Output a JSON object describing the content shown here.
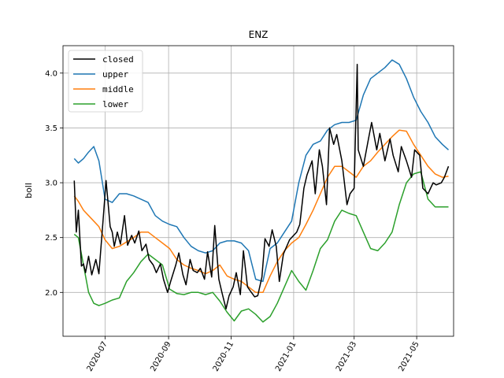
{
  "chart_data": {
    "type": "line",
    "title": "ENZ",
    "xlabel": "",
    "ylabel": "boll",
    "x_tick_labels": [
      "2020-07",
      "2020-09",
      "2020-11",
      "2021-01",
      "2021-03",
      "2021-05"
    ],
    "x_tick_values": [
      "2020-07-01",
      "2020-09-01",
      "2020-11-01",
      "2021-01-01",
      "2021-03-01",
      "2021-05-01"
    ],
    "x_range": [
      "2020-05-21",
      "2021-06-06"
    ],
    "y_ticks": [
      2.0,
      2.5,
      3.0,
      3.5,
      4.0
    ],
    "y_tick_labels": [
      "2.0",
      "2.5",
      "3.0",
      "3.5",
      "4.0"
    ],
    "ylim": [
      1.6,
      4.25
    ],
    "grid": true,
    "legend_position": "top-left",
    "series": [
      {
        "name": "closed",
        "color": "#000000",
        "x": [
          "2020-06-01",
          "2020-06-03",
          "2020-06-05",
          "2020-06-08",
          "2020-06-10",
          "2020-06-12",
          "2020-06-15",
          "2020-06-18",
          "2020-06-22",
          "2020-06-25",
          "2020-06-29",
          "2020-07-02",
          "2020-07-06",
          "2020-07-08",
          "2020-07-10",
          "2020-07-13",
          "2020-07-16",
          "2020-07-20",
          "2020-07-23",
          "2020-07-27",
          "2020-07-30",
          "2020-08-03",
          "2020-08-06",
          "2020-08-10",
          "2020-08-13",
          "2020-08-17",
          "2020-08-20",
          "2020-08-24",
          "2020-08-27",
          "2020-08-31",
          "2020-09-03",
          "2020-09-08",
          "2020-09-11",
          "2020-09-15",
          "2020-09-18",
          "2020-09-22",
          "2020-09-25",
          "2020-09-29",
          "2020-10-02",
          "2020-10-06",
          "2020-10-09",
          "2020-10-13",
          "2020-10-16",
          "2020-10-20",
          "2020-10-23",
          "2020-10-27",
          "2020-10-30",
          "2020-11-03",
          "2020-11-06",
          "2020-11-10",
          "2020-11-13",
          "2020-11-17",
          "2020-11-20",
          "2020-11-24",
          "2020-11-27",
          "2020-12-01",
          "2020-12-04",
          "2020-12-08",
          "2020-12-11",
          "2020-12-15",
          "2020-12-18",
          "2020-12-22",
          "2020-12-28",
          "2021-01-04",
          "2021-01-07",
          "2021-01-11",
          "2021-01-14",
          "2021-01-19",
          "2021-01-22",
          "2021-01-26",
          "2021-01-29",
          "2021-02-02",
          "2021-02-05",
          "2021-02-09",
          "2021-02-12",
          "2021-02-17",
          "2021-02-22",
          "2021-02-25",
          "2021-03-01",
          "2021-03-04",
          "2021-03-05",
          "2021-03-10",
          "2021-03-15",
          "2021-03-18",
          "2021-03-23",
          "2021-03-26",
          "2021-03-31",
          "2021-04-05",
          "2021-04-08",
          "2021-04-13",
          "2021-04-16",
          "2021-04-21",
          "2021-04-26",
          "2021-04-29",
          "2021-05-04",
          "2021-05-07",
          "2021-05-12",
          "2021-05-17",
          "2021-05-20",
          "2021-05-25",
          "2021-05-28",
          "2021-06-01"
        ],
        "values": [
          3.02,
          2.55,
          2.75,
          2.24,
          2.26,
          2.18,
          2.33,
          2.16,
          2.3,
          2.17,
          2.65,
          3.02,
          2.6,
          2.55,
          2.42,
          2.55,
          2.44,
          2.7,
          2.43,
          2.52,
          2.45,
          2.56,
          2.38,
          2.44,
          2.3,
          2.25,
          2.18,
          2.26,
          2.12,
          2.0,
          2.1,
          2.25,
          2.36,
          2.16,
          2.07,
          2.3,
          2.2,
          2.18,
          2.22,
          2.12,
          2.37,
          2.14,
          2.61,
          2.12,
          2.0,
          1.85,
          1.97,
          2.05,
          2.18,
          1.98,
          2.38,
          2.05,
          2.01,
          1.96,
          1.97,
          2.14,
          2.49,
          2.42,
          2.57,
          2.42,
          2.1,
          2.35,
          2.48,
          2.55,
          2.62,
          2.95,
          3.07,
          3.2,
          2.9,
          3.3,
          3.15,
          2.8,
          3.5,
          3.35,
          3.44,
          3.2,
          2.8,
          2.9,
          2.95,
          4.08,
          3.3,
          3.15,
          3.4,
          3.55,
          3.3,
          3.45,
          3.2,
          3.4,
          3.25,
          3.1,
          3.33,
          3.2,
          3.05,
          3.3,
          3.25,
          2.95,
          2.9,
          3.0,
          2.98,
          3.0,
          3.05,
          3.15
        ]
      },
      {
        "name": "upper",
        "color": "#1f77b4",
        "x": [
          "2020-06-01",
          "2020-06-05",
          "2020-06-10",
          "2020-06-15",
          "2020-06-20",
          "2020-06-25",
          "2020-07-01",
          "2020-07-08",
          "2020-07-15",
          "2020-07-22",
          "2020-07-29",
          "2020-08-05",
          "2020-08-12",
          "2020-08-19",
          "2020-08-26",
          "2020-09-02",
          "2020-09-09",
          "2020-09-16",
          "2020-09-23",
          "2020-09-30",
          "2020-10-07",
          "2020-10-14",
          "2020-10-21",
          "2020-10-28",
          "2020-11-04",
          "2020-11-11",
          "2020-11-18",
          "2020-11-25",
          "2020-12-02",
          "2020-12-09",
          "2020-12-16",
          "2020-12-23",
          "2020-12-30",
          "2021-01-06",
          "2021-01-13",
          "2021-01-20",
          "2021-01-27",
          "2021-02-03",
          "2021-02-10",
          "2021-02-17",
          "2021-02-24",
          "2021-03-03",
          "2021-03-10",
          "2021-03-17",
          "2021-03-24",
          "2021-03-31",
          "2021-04-07",
          "2021-04-14",
          "2021-04-21",
          "2021-04-28",
          "2021-05-05",
          "2021-05-12",
          "2021-05-19",
          "2021-05-26",
          "2021-06-01"
        ],
        "values": [
          3.22,
          3.18,
          3.22,
          3.28,
          3.33,
          3.2,
          2.85,
          2.82,
          2.9,
          2.9,
          2.88,
          2.85,
          2.82,
          2.7,
          2.65,
          2.62,
          2.6,
          2.5,
          2.42,
          2.38,
          2.36,
          2.38,
          2.45,
          2.47,
          2.47,
          2.45,
          2.38,
          2.12,
          2.1,
          2.4,
          2.45,
          2.55,
          2.65,
          3.0,
          3.25,
          3.35,
          3.38,
          3.48,
          3.53,
          3.55,
          3.55,
          3.57,
          3.8,
          3.95,
          4.0,
          4.05,
          4.12,
          4.08,
          3.95,
          3.78,
          3.65,
          3.55,
          3.42,
          3.35,
          3.3
        ]
      },
      {
        "name": "middle",
        "color": "#ff7f0e",
        "x": [
          "2020-06-01",
          "2020-06-05",
          "2020-06-10",
          "2020-06-15",
          "2020-06-20",
          "2020-06-25",
          "2020-07-01",
          "2020-07-08",
          "2020-07-15",
          "2020-07-22",
          "2020-07-29",
          "2020-08-05",
          "2020-08-12",
          "2020-08-19",
          "2020-08-26",
          "2020-09-02",
          "2020-09-09",
          "2020-09-16",
          "2020-09-23",
          "2020-09-30",
          "2020-10-07",
          "2020-10-14",
          "2020-10-21",
          "2020-10-28",
          "2020-11-04",
          "2020-11-11",
          "2020-11-18",
          "2020-11-25",
          "2020-12-02",
          "2020-12-09",
          "2020-12-16",
          "2020-12-23",
          "2020-12-30",
          "2021-01-06",
          "2021-01-13",
          "2021-01-20",
          "2021-01-27",
          "2021-02-03",
          "2021-02-10",
          "2021-02-17",
          "2021-02-24",
          "2021-03-03",
          "2021-03-10",
          "2021-03-17",
          "2021-03-24",
          "2021-03-31",
          "2021-04-07",
          "2021-04-14",
          "2021-04-21",
          "2021-04-28",
          "2021-05-05",
          "2021-05-12",
          "2021-05-19",
          "2021-05-26",
          "2021-06-01"
        ],
        "values": [
          2.88,
          2.83,
          2.75,
          2.7,
          2.65,
          2.6,
          2.48,
          2.4,
          2.42,
          2.46,
          2.5,
          2.55,
          2.55,
          2.5,
          2.45,
          2.4,
          2.3,
          2.25,
          2.22,
          2.2,
          2.17,
          2.2,
          2.25,
          2.15,
          2.12,
          2.1,
          2.05,
          2.0,
          2.0,
          2.15,
          2.28,
          2.38,
          2.45,
          2.5,
          2.62,
          2.75,
          2.9,
          3.05,
          3.15,
          3.15,
          3.1,
          3.05,
          3.15,
          3.2,
          3.28,
          3.35,
          3.42,
          3.48,
          3.47,
          3.35,
          3.25,
          3.15,
          3.08,
          3.05,
          3.06
        ]
      },
      {
        "name": "lower",
        "color": "#2ca02c",
        "x": [
          "2020-06-01",
          "2020-06-05",
          "2020-06-10",
          "2020-06-15",
          "2020-06-20",
          "2020-06-25",
          "2020-07-01",
          "2020-07-08",
          "2020-07-15",
          "2020-07-22",
          "2020-07-29",
          "2020-08-05",
          "2020-08-12",
          "2020-08-19",
          "2020-08-26",
          "2020-09-02",
          "2020-09-09",
          "2020-09-16",
          "2020-09-23",
          "2020-09-30",
          "2020-10-07",
          "2020-10-14",
          "2020-10-21",
          "2020-10-28",
          "2020-11-04",
          "2020-11-11",
          "2020-11-18",
          "2020-11-25",
          "2020-12-02",
          "2020-12-09",
          "2020-12-16",
          "2020-12-23",
          "2020-12-30",
          "2021-01-06",
          "2021-01-13",
          "2021-01-20",
          "2021-01-27",
          "2021-02-03",
          "2021-02-10",
          "2021-02-17",
          "2021-02-24",
          "2021-03-03",
          "2021-03-10",
          "2021-03-17",
          "2021-03-24",
          "2021-03-31",
          "2021-04-07",
          "2021-04-14",
          "2021-04-21",
          "2021-04-28",
          "2021-05-05",
          "2021-05-12",
          "2021-05-19",
          "2021-05-26",
          "2021-06-01"
        ],
        "values": [
          2.53,
          2.5,
          2.25,
          2.0,
          1.9,
          1.88,
          1.9,
          1.93,
          1.95,
          2.1,
          2.18,
          2.28,
          2.35,
          2.3,
          2.25,
          2.03,
          1.99,
          1.98,
          2.0,
          2.0,
          1.98,
          2.0,
          1.92,
          1.82,
          1.74,
          1.83,
          1.85,
          1.8,
          1.73,
          1.78,
          1.9,
          2.05,
          2.2,
          2.1,
          2.02,
          2.2,
          2.4,
          2.48,
          2.65,
          2.75,
          2.72,
          2.7,
          2.55,
          2.4,
          2.38,
          2.45,
          2.55,
          2.8,
          3.0,
          3.08,
          3.1,
          2.85,
          2.78,
          2.78,
          2.78
        ]
      }
    ]
  }
}
